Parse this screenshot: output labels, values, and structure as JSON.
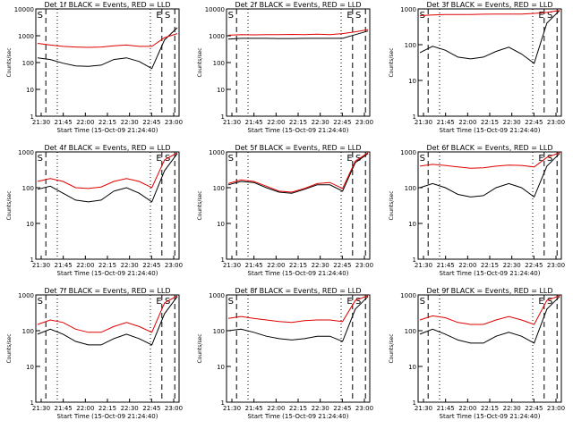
{
  "figure": {
    "background": "#ffffff",
    "colors": {
      "events": "#000000",
      "lld": "#e00000",
      "axis": "#000000"
    }
  },
  "chart_data": [
    {
      "type": "line",
      "title": "Det 1f BLACK = Events, RED = LLD",
      "xlabel": "Start Time (15-Oct-09 21:24:40)",
      "ylabel": "Counts/sec",
      "ymin": 1,
      "ymax": 10000,
      "scale": "log",
      "xlim_minutes": [
        0,
        100
      ],
      "xticks": [
        "21:30",
        "21:45",
        "22:00",
        "22:15",
        "22:30",
        "22:45",
        "23:00"
      ],
      "yticks": [
        "1",
        "10",
        "100",
        "1000",
        "10000"
      ],
      "markers": [
        "S",
        "E",
        "S"
      ],
      "series": [
        {
          "values": [
            150,
            130,
            95,
            75,
            72,
            80,
            130,
            150,
            110,
            60,
            700,
            2000
          ]
        },
        {
          "values": [
            520,
            450,
            400,
            380,
            370,
            380,
            420,
            450,
            400,
            400,
            850,
            1200
          ]
        }
      ]
    },
    {
      "type": "line",
      "title": "Det 2f BLACK = Events, RED = LLD",
      "xlabel": "Start Time (15-Oct-09 21:24:40)",
      "ylabel": "Counts/sec",
      "ymin": 1,
      "ymax": 10000,
      "scale": "log",
      "xlim_minutes": [
        0,
        100
      ],
      "xticks": [
        "21:30",
        "21:45",
        "22:00",
        "22:15",
        "22:30",
        "22:45",
        "23:00"
      ],
      "yticks": [
        "1",
        "10",
        "100",
        "1000",
        "10000"
      ],
      "markers": [
        "S",
        "E",
        "S"
      ],
      "series": [
        {
          "values": [
            750,
            800,
            800,
            800,
            790,
            790,
            800,
            800,
            800,
            800,
            1100,
            1500
          ]
        },
        {
          "values": [
            1050,
            1100,
            1080,
            1100,
            1100,
            1120,
            1100,
            1150,
            1100,
            1200,
            1400,
            1700
          ]
        }
      ]
    },
    {
      "type": "line",
      "title": "Det 3f BLACK = Events, RED = LLD",
      "xlabel": "Start Time (15-Oct-09 21:24:40)",
      "ylabel": "Counts/sec",
      "ymin": 1,
      "ymax": 1000,
      "scale": "log",
      "xlim_minutes": [
        0,
        100
      ],
      "xticks": [
        "21:30",
        "21:45",
        "22:00",
        "22:15",
        "22:30",
        "22:45",
        "23:00"
      ],
      "yticks": [
        "1",
        "10",
        "100",
        "1000"
      ],
      "markers": [
        "S",
        "E",
        "S"
      ],
      "series": [
        {
          "values": [
            60,
            90,
            70,
            45,
            40,
            45,
            65,
            85,
            55,
            30,
            400,
            900
          ]
        },
        {
          "values": [
            650,
            680,
            700,
            700,
            700,
            710,
            720,
            720,
            720,
            750,
            800,
            900
          ]
        }
      ]
    },
    {
      "type": "line",
      "title": "Det 4f BLACK = Events, RED = LLD",
      "xlabel": "Start Time (15-Oct-09 21:24:40)",
      "ylabel": "Counts/sec",
      "ymin": 1,
      "ymax": 1000,
      "scale": "log",
      "xlim_minutes": [
        0,
        100
      ],
      "xticks": [
        "21:30",
        "21:45",
        "22:00",
        "22:15",
        "22:30",
        "22:45",
        "23:00"
      ],
      "yticks": [
        "1",
        "10",
        "100",
        "1000"
      ],
      "markers": [
        "S",
        "E",
        "S"
      ],
      "series": [
        {
          "values": [
            90,
            110,
            70,
            45,
            40,
            45,
            80,
            100,
            70,
            40,
            300,
            900
          ]
        },
        {
          "values": [
            150,
            180,
            150,
            100,
            95,
            105,
            150,
            180,
            150,
            100,
            600,
            950
          ]
        }
      ]
    },
    {
      "type": "line",
      "title": "Det 5f BLACK = Events, RED = LLD",
      "xlabel": "Start Time (15-Oct-09 21:24:40)",
      "ylabel": "Counts/sec",
      "ymin": 1,
      "ymax": 1000,
      "scale": "log",
      "xlim_minutes": [
        0,
        100
      ],
      "xticks": [
        "21:30",
        "21:45",
        "22:00",
        "22:15",
        "22:30",
        "22:45",
        "23:00"
      ],
      "yticks": [
        "1",
        "10",
        "100",
        "1000"
      ],
      "markers": [
        "S",
        "E",
        "S"
      ],
      "series": [
        {
          "values": [
            120,
            150,
            140,
            100,
            75,
            70,
            90,
            120,
            120,
            80,
            500,
            900
          ]
        },
        {
          "values": [
            130,
            165,
            150,
            110,
            80,
            75,
            95,
            130,
            140,
            95,
            550,
            950
          ]
        }
      ]
    },
    {
      "type": "line",
      "title": "Det 6f BLACK = Events, RED = LLD",
      "xlabel": "Start Time (15-Oct-09 21:24:40)",
      "ylabel": "Counts/sec",
      "ymin": 1,
      "ymax": 1000,
      "scale": "log",
      "xlim_minutes": [
        0,
        100
      ],
      "xticks": [
        "21:30",
        "21:45",
        "22:00",
        "22:15",
        "22:30",
        "22:45",
        "23:00"
      ],
      "yticks": [
        "1",
        "10",
        "100",
        "1000"
      ],
      "markers": [
        "S",
        "E",
        "S"
      ],
      "series": [
        {
          "values": [
            100,
            130,
            100,
            65,
            55,
            60,
            100,
            130,
            100,
            55,
            400,
            900
          ]
        },
        {
          "values": [
            400,
            450,
            420,
            380,
            350,
            360,
            400,
            430,
            420,
            380,
            700,
            950
          ]
        }
      ]
    },
    {
      "type": "line",
      "title": "Det 7f BLACK = Events, RED = LLD",
      "xlabel": "Start Time (15-Oct-09 21:24:40)",
      "ylabel": "Counts/sec",
      "ymin": 1,
      "ymax": 1000,
      "scale": "log",
      "xlim_minutes": [
        0,
        100
      ],
      "xticks": [
        "21:30",
        "21:45",
        "22:00",
        "22:15",
        "22:30",
        "22:45",
        "23:00"
      ],
      "yticks": [
        "1",
        "10",
        "100",
        "1000"
      ],
      "markers": [
        "S",
        "E",
        "S"
      ],
      "series": [
        {
          "values": [
            80,
            110,
            80,
            50,
            40,
            40,
            60,
            80,
            60,
            40,
            300,
            900
          ]
        },
        {
          "values": [
            150,
            200,
            170,
            110,
            90,
            90,
            130,
            170,
            130,
            90,
            600,
            950
          ]
        }
      ]
    },
    {
      "type": "line",
      "title": "Det 8f BLACK = Events, RED = LLD",
      "xlabel": "Start Time (15-Oct-09 21:24:40)",
      "ylabel": "Counts/sec",
      "ymin": 1,
      "ymax": 1000,
      "scale": "log",
      "xlim_minutes": [
        0,
        100
      ],
      "xticks": [
        "21:30",
        "21:45",
        "22:00",
        "22:15",
        "22:30",
        "22:45",
        "23:00"
      ],
      "yticks": [
        "1",
        "10",
        "100",
        "1000"
      ],
      "markers": [
        "S",
        "E",
        "S"
      ],
      "series": [
        {
          "values": [
            100,
            110,
            90,
            70,
            60,
            55,
            60,
            70,
            70,
            50,
            400,
            900
          ]
        },
        {
          "values": [
            220,
            250,
            220,
            200,
            180,
            170,
            190,
            200,
            200,
            180,
            700,
            950
          ]
        }
      ]
    },
    {
      "type": "line",
      "title": "Det 9f BLACK = Events, RED = LLD",
      "xlabel": "Start Time (15-Oct-09 21:24:40)",
      "ylabel": "Counts/sec",
      "ymin": 1,
      "ymax": 1000,
      "scale": "log",
      "xlim_minutes": [
        0,
        100
      ],
      "xticks": [
        "21:30",
        "21:45",
        "22:00",
        "22:15",
        "22:30",
        "22:45",
        "23:00"
      ],
      "yticks": [
        "1",
        "10",
        "100",
        "1000"
      ],
      "markers": [
        "S",
        "E",
        "S"
      ],
      "series": [
        {
          "values": [
            80,
            110,
            80,
            55,
            45,
            45,
            70,
            90,
            70,
            45,
            400,
            900
          ]
        },
        {
          "values": [
            200,
            260,
            230,
            170,
            150,
            150,
            200,
            250,
            200,
            150,
            700,
            950
          ]
        }
      ]
    }
  ]
}
